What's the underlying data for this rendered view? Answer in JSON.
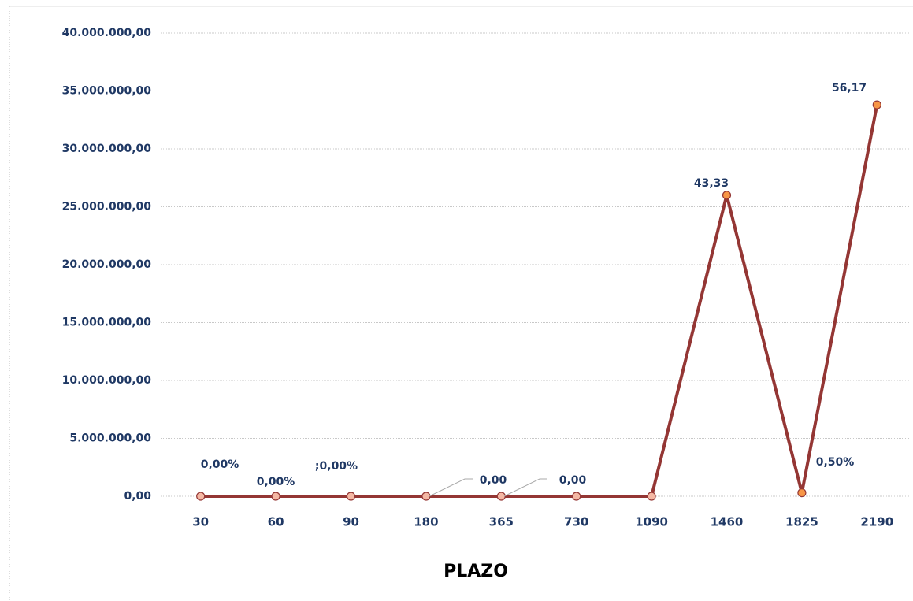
{
  "chart_data": {
    "type": "line",
    "x_label": "PLAZO",
    "categories": [
      "30",
      "60",
      "90",
      "180",
      "365",
      "730",
      "1090",
      "1460",
      "1825",
      "2190"
    ],
    "series": [
      {
        "color": "#943634",
        "marker_color": "#f79646",
        "values": [
          0,
          0,
          0,
          0,
          0,
          0,
          0,
          26000000,
          300000,
          33800000
        ]
      }
    ],
    "annotations": [
      "0,00%",
      "0,00%",
      ";0,00%",
      "0,00",
      "0,00",
      "43,33",
      "0,50%",
      "56,17"
    ],
    "ylim": [
      0,
      40000000
    ],
    "yticks": [
      {
        "value": 0,
        "label": "0,00"
      },
      {
        "value": 5000000,
        "label": "5.000.000,00"
      },
      {
        "value": 10000000,
        "label": "10.000.000,00"
      },
      {
        "value": 15000000,
        "label": "15.000.000,00"
      },
      {
        "value": 20000000,
        "label": "20.000.000,00"
      },
      {
        "value": 25000000,
        "label": "25.000.000,00"
      },
      {
        "value": 30000000,
        "label": "30.000.000,00"
      },
      {
        "value": 35000000,
        "label": "35.000.000,00"
      },
      {
        "value": 40000000,
        "label": "40.000.000,00"
      }
    ],
    "grid": true
  }
}
